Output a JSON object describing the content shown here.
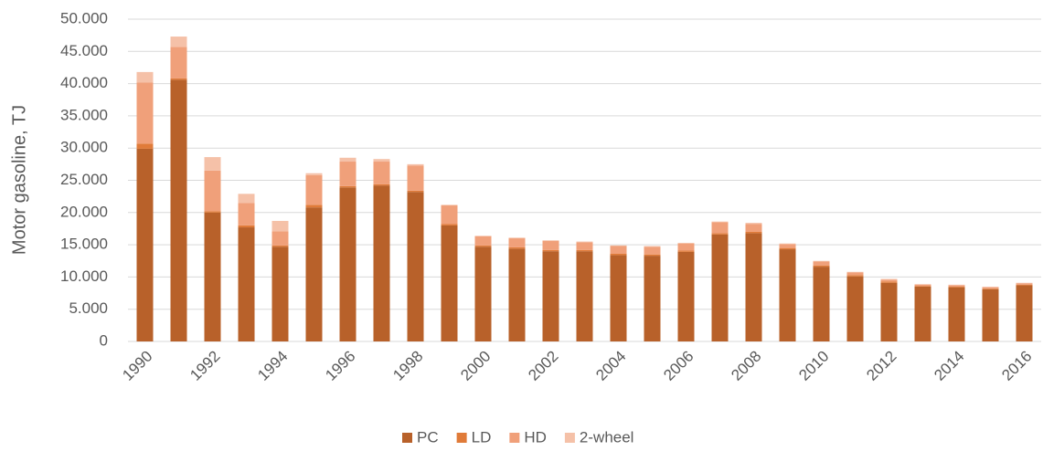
{
  "chart_data": {
    "type": "stacked_bar",
    "y_label": "Motor gasoline, TJ",
    "categories": [
      "1990",
      null,
      "1992",
      null,
      "1994",
      null,
      "1996",
      null,
      "1998",
      null,
      "2000",
      null,
      "2002",
      null,
      "2004",
      null,
      "2006",
      null,
      "2008",
      null,
      "2010",
      null,
      "2012",
      null,
      "2014",
      null,
      "2016"
    ],
    "series": [
      {
        "name": "PC",
        "color": "#b8612a",
        "values": [
          29900,
          40600,
          20000,
          17700,
          14700,
          20800,
          23900,
          24200,
          23200,
          18000,
          14700,
          14400,
          14000,
          14000,
          13400,
          13300,
          13900,
          16600,
          16800,
          14300,
          11600,
          10100,
          9100,
          8500,
          8400,
          8100,
          8700
        ]
      },
      {
        "name": "LD",
        "color": "#e07b39",
        "values": [
          800,
          200,
          200,
          300,
          200,
          400,
          200,
          200,
          200,
          200,
          200,
          200,
          200,
          200,
          200,
          200,
          200,
          200,
          200,
          200,
          200,
          200,
          200,
          100,
          100,
          100,
          100
        ]
      },
      {
        "name": "HD",
        "color": "#f0a07a",
        "values": [
          9500,
          4900,
          6300,
          3500,
          2200,
          4600,
          3800,
          3500,
          3900,
          2900,
          1400,
          1400,
          1400,
          1200,
          1200,
          1200,
          1100,
          1700,
          1200,
          600,
          600,
          400,
          300,
          200,
          200,
          200,
          200
        ]
      },
      {
        "name": "2-wheel",
        "color": "#f5c1a8",
        "values": [
          1600,
          1600,
          2100,
          1400,
          1600,
          300,
          600,
          400,
          200,
          100,
          100,
          100,
          100,
          100,
          100,
          100,
          100,
          100,
          200,
          100,
          100,
          100,
          100,
          100,
          100,
          100,
          100
        ]
      }
    ],
    "ylim": [
      0,
      50000
    ],
    "yticks": [
      0,
      {
        "value": 5000,
        "label": "5.000"
      },
      {
        "value": 10000,
        "label": "10.000"
      },
      {
        "value": 15000,
        "label": "15.000"
      },
      {
        "value": 20000,
        "label": "20.000"
      },
      {
        "value": 25000,
        "label": "25.000"
      },
      {
        "value": 30000,
        "label": "30.000"
      },
      {
        "value": 35000,
        "label": "35.000"
      },
      {
        "value": 40000,
        "label": "40.000"
      },
      {
        "value": 45000,
        "label": "45.000"
      },
      {
        "value": 50000,
        "label": "50.000"
      }
    ],
    "grid": true,
    "legend": "bottom"
  }
}
